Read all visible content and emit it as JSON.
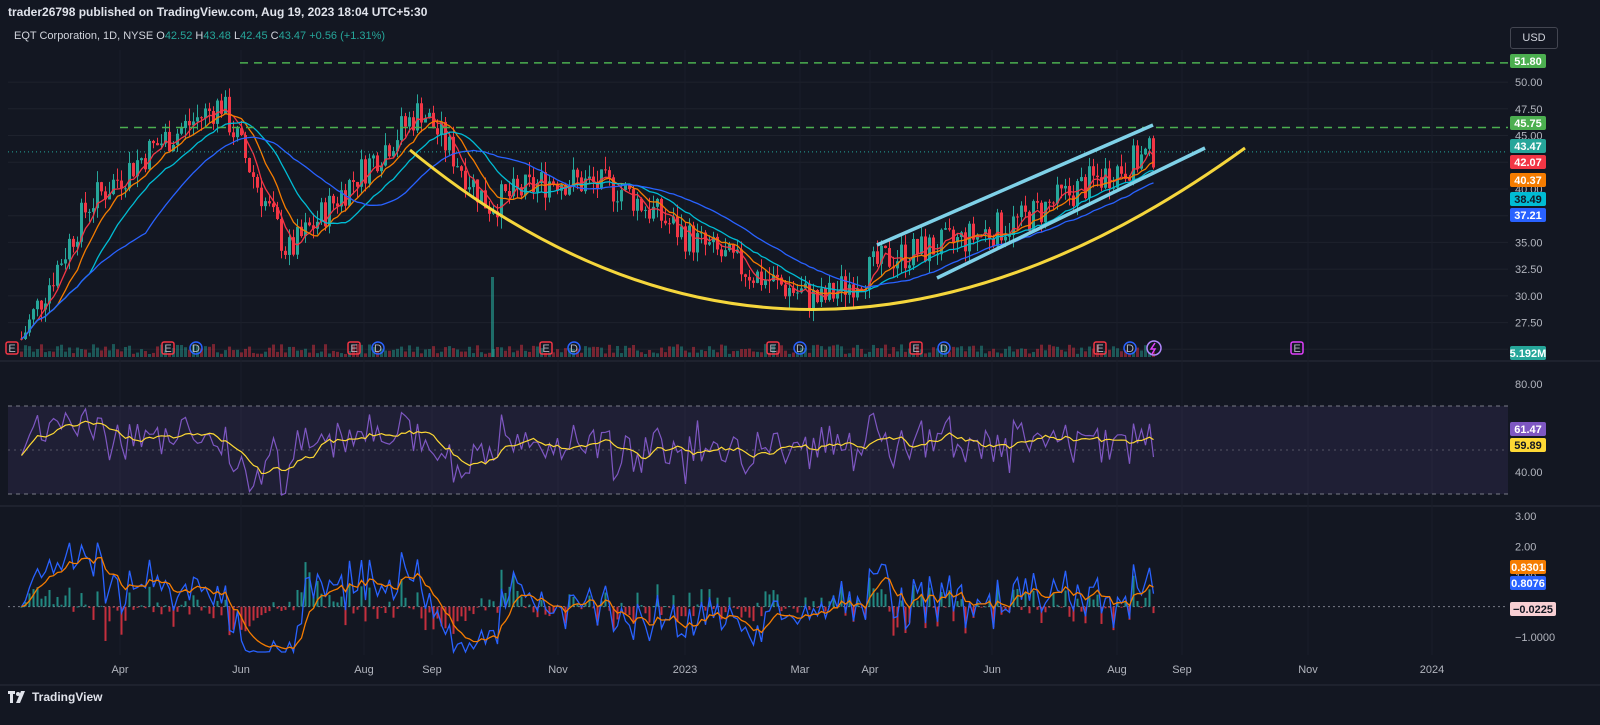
{
  "publish_line": "trader26798 published on TradingView.com, Aug 19, 2023 18:04 UTC+5:30",
  "symbol": {
    "name": "EQT Corporation, 1D, NYSE",
    "o_label": "O",
    "o": "42.52",
    "h_label": "H",
    "h": "43.48",
    "l_label": "L",
    "l": "42.45",
    "c_label": "C",
    "c": "43.47",
    "change": "+0.56 (+1.31%)"
  },
  "currency": "USD",
  "price_axis": [
    "50.00",
    "47.50",
    "45.00",
    "42.50",
    "40.00",
    "37.50",
    "35.00",
    "32.50",
    "30.00",
    "27.50",
    "25.00"
  ],
  "price_tags": [
    {
      "value": "51.80",
      "color": "#4caf50"
    },
    {
      "value": "45.75",
      "color": "#4caf50"
    },
    {
      "value": "43.47",
      "color": "#26a69a"
    },
    {
      "value": "42.07",
      "color": "#f23645"
    },
    {
      "value": "40.37",
      "color": "#f57c00"
    },
    {
      "value": "38.49",
      "color": "#00bcd4"
    },
    {
      "value": "37.21",
      "color": "#2962ff"
    },
    {
      "value": "5.192M",
      "color": "#26a69a"
    }
  ],
  "rsi_axis": [
    "80.00",
    "60.00",
    "40.00"
  ],
  "rsi_tags": [
    {
      "value": "61.47",
      "color": "#7e57c2"
    },
    {
      "value": "59.89",
      "color": "#fdd835"
    }
  ],
  "macd_axis": [
    "3.00",
    "2.00",
    "1.00",
    "−1.0000"
  ],
  "macd_tags": [
    {
      "value": "0.8301",
      "color": "#f57c00"
    },
    {
      "value": "0.8076",
      "color": "#2962ff"
    },
    {
      "value": "−0.0225",
      "color": "#f8cfd3"
    }
  ],
  "time_axis": [
    "Apr",
    "Jun",
    "Aug",
    "Sep",
    "Nov",
    "2023",
    "Mar",
    "Apr",
    "Jun",
    "Aug",
    "Sep",
    "Nov",
    "2024"
  ],
  "event_markers": [
    "E",
    "E",
    "D",
    "E",
    "D",
    "E",
    "D",
    "E",
    "D",
    "E",
    "D",
    "E",
    "D",
    "E"
  ],
  "colors": {
    "bg": "#131722",
    "up": "#26a69a",
    "down": "#f23645",
    "channel": "#7fd1e8",
    "curve": "#f5d63c",
    "level": "#4caf50"
  },
  "brand": "TradingView",
  "chart_data": {
    "type": "line",
    "title": "EQT Corporation, 1D, NYSE",
    "xlabel": "",
    "ylabel": "",
    "ylim": [
      24,
      53
    ],
    "x": [
      "Mar-2022",
      "Apr-2022",
      "May-2022",
      "Jun-2022",
      "Jul-2022",
      "Aug-2022",
      "Sep-2022",
      "Oct-2022",
      "Nov-2022",
      "Dec-2022",
      "Jan-2023",
      "Feb-2023",
      "Mar-2023",
      "Apr-2023",
      "May-2023",
      "Jun-2023",
      "Jul-2023",
      "Aug-2023"
    ],
    "series": [
      {
        "name": "",
        "values": [
          26.0,
          38.5,
          44.0,
          48.0,
          34.0,
          41.0,
          47.5,
          38.5,
          41.0,
          40.0,
          35.5,
          32.0,
          29.5,
          33.5,
          35.0,
          37.0,
          40.5,
          43.47
        ]
      }
    ],
    "levels": [
      51.8,
      45.75
    ],
    "legend": "none",
    "grid": true
  }
}
